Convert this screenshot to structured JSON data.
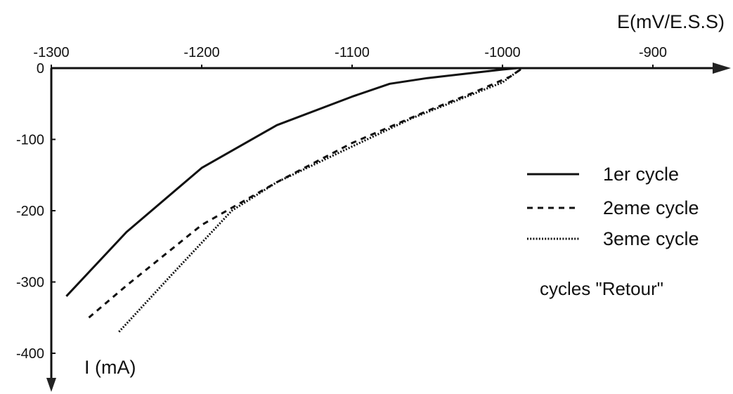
{
  "chart_data": {
    "type": "line",
    "x_label": "E(mV/E.S.S)",
    "y_label": "I (mA)",
    "x_range": [
      -1300,
      -880
    ],
    "y_range": [
      0,
      -430
    ],
    "x_axis_position": "top, pointing right",
    "y_axis_direction": "downward",
    "x_ticks": [
      -1300,
      -1200,
      -1100,
      -1000,
      -900
    ],
    "x_tick_labels": [
      "-1300",
      "-1200",
      "-1100",
      "-1000",
      "-900"
    ],
    "y_ticks": [
      0,
      -100,
      -200,
      -300,
      -400
    ],
    "y_tick_labels": [
      "0",
      "-100",
      "-200",
      "-300",
      "-400"
    ],
    "grid": false,
    "legend_position": "right",
    "legend_note": "cycles \"Retour\"",
    "series": [
      {
        "name": "1er cycle",
        "style": "solid",
        "x": [
          -1290,
          -1250,
          -1200,
          -1150,
          -1100,
          -1075,
          -1050,
          -1000,
          -990
        ],
        "y": [
          -320,
          -230,
          -140,
          -80,
          -40,
          -22,
          -14,
          -2,
          0
        ]
      },
      {
        "name": "2eme cycle",
        "style": "dashed",
        "x": [
          -1275,
          -1250,
          -1200,
          -1150,
          -1100,
          -1050,
          -1020,
          -995,
          -988
        ],
        "y": [
          -350,
          -305,
          -220,
          -160,
          -105,
          -60,
          -35,
          -12,
          -2
        ]
      },
      {
        "name": "3eme cycle",
        "style": "dotted",
        "x": [
          -1255,
          -1220,
          -1180,
          -1150,
          -1100,
          -1060,
          -1030,
          -1000,
          -987
        ],
        "y": [
          -370,
          -290,
          -200,
          -160,
          -110,
          -70,
          -45,
          -20,
          0
        ]
      }
    ]
  }
}
